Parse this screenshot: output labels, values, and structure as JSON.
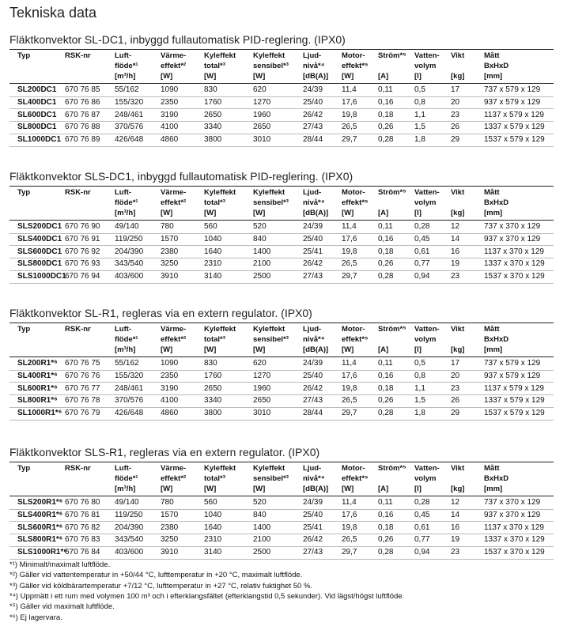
{
  "title": "Tekniska data",
  "sections": [
    {
      "heading": "Fläktkonvektor SL-DC1, inbyggd fullautomatisk PID-reglering. (IPX0)",
      "table": {
        "header": [
          [
            "Typ"
          ],
          [
            "RSK-nr"
          ],
          [
            "Luft-",
            "flöde*¹",
            "[m³/h]"
          ],
          [
            "Värme-",
            "effekt*²",
            "[W]"
          ],
          [
            "Kyleffekt",
            "total*³",
            "[W]"
          ],
          [
            "Kyleffekt",
            "sensibel*³",
            "[W]"
          ],
          [
            "Ljud-",
            "nivå*⁴",
            "[dB(A)]"
          ],
          [
            "Motor-",
            "effekt*⁵",
            "[W]"
          ],
          [
            "Ström*⁵",
            "[A]"
          ],
          [
            "Vatten-",
            "volym",
            "[l]"
          ],
          [
            "Vikt",
            "[kg]"
          ],
          [
            "Mått",
            "BxHxD",
            "[mm]"
          ]
        ],
        "rows": [
          [
            "SL200DC1",
            "670 76 85",
            "55/162",
            "1090",
            "830",
            "620",
            "24/39",
            "11,4",
            "0,11",
            "0,5",
            "17",
            "737 x 579 x 129"
          ],
          [
            "SL400DC1",
            "670 76 86",
            "155/320",
            "2350",
            "1760",
            "1270",
            "25/40",
            "17,6",
            "0,16",
            "0,8",
            "20",
            "937 x 579 x 129"
          ],
          [
            "SL600DC1",
            "670 76 87",
            "248/461",
            "3190",
            "2650",
            "1960",
            "26/42",
            "19,8",
            "0,18",
            "1,1",
            "23",
            "1137 x 579 x 129"
          ],
          [
            "SL800DC1",
            "670 76 88",
            "370/576",
            "4100",
            "3340",
            "2650",
            "27/43",
            "26,5",
            "0,26",
            "1,5",
            "26",
            "1337 x 579 x 129"
          ],
          [
            "SL1000DC1",
            "670 76 89",
            "426/648",
            "4860",
            "3800",
            "3010",
            "28/44",
            "29,7",
            "0,28",
            "1,8",
            "29",
            "1537 x 579 x 129"
          ]
        ]
      }
    },
    {
      "heading": "Fläktkonvektor SLS-DC1, inbyggd fullautomatisk PID-reglering. (IPX0)",
      "table": {
        "header": [
          [
            "Typ"
          ],
          [
            "RSK-nr"
          ],
          [
            "Luft-",
            "flöde*¹",
            "[m³/h]"
          ],
          [
            "Värme-",
            "effekt*²",
            "[W]"
          ],
          [
            "Kyleffekt",
            "total*³",
            "[W]"
          ],
          [
            "Kyleffekt",
            "sensibel*³",
            "[W]"
          ],
          [
            "Ljud-",
            "nivå*⁴",
            "[dB(A)]"
          ],
          [
            "Motor-",
            "effekt*⁵",
            "[W]"
          ],
          [
            "Ström*⁵",
            "[A]"
          ],
          [
            "Vatten-",
            "volym",
            "[l]"
          ],
          [
            "Vikt",
            "[kg]"
          ],
          [
            "Mått",
            "BxHxD",
            "[mm]"
          ]
        ],
        "rows": [
          [
            "SLS200DC1",
            "670 76 90",
            "49/140",
            "780",
            "560",
            "520",
            "24/39",
            "11,4",
            "0,11",
            "0,28",
            "12",
            "737 x 370 x 129"
          ],
          [
            "SLS400DC1",
            "670 76 91",
            "119/250",
            "1570",
            "1040",
            "840",
            "25/40",
            "17,6",
            "0,16",
            "0,45",
            "14",
            "937 x 370 x 129"
          ],
          [
            "SLS600DC1",
            "670 76 92",
            "204/390",
            "2380",
            "1640",
            "1400",
            "25/41",
            "19,8",
            "0,18",
            "0,61",
            "16",
            "1137 x 370 x 129"
          ],
          [
            "SLS800DC1",
            "670 76 93",
            "343/540",
            "3250",
            "2310",
            "2100",
            "26/42",
            "26,5",
            "0,26",
            "0,77",
            "19",
            "1337 x 370 x 129"
          ],
          [
            "SLS1000DC1",
            "670 76 94",
            "403/600",
            "3910",
            "3140",
            "2500",
            "27/43",
            "29,7",
            "0,28",
            "0,94",
            "23",
            "1537 x 370 x 129"
          ]
        ]
      }
    },
    {
      "heading": "Fläktkonvektor SL-R1, regleras via en extern regulator. (IPX0)",
      "table": {
        "header": [
          [
            "Typ"
          ],
          [
            "RSK-nr"
          ],
          [
            "Luft-",
            "flöde*¹",
            "[m³/h]"
          ],
          [
            "Värme-",
            "effekt*²",
            "[W]"
          ],
          [
            "Kyleffekt",
            "total*³",
            "[W]"
          ],
          [
            "Kyleffekt",
            "sensibel*³",
            "[W]"
          ],
          [
            "Ljud-",
            "nivå*⁴",
            "[dB(A)]"
          ],
          [
            "Motor-",
            "effekt*⁵",
            "[W]"
          ],
          [
            "Ström*⁵",
            "[A]"
          ],
          [
            "Vatten-",
            "volym",
            "[l]"
          ],
          [
            "Vikt",
            "[kg]"
          ],
          [
            "Mått",
            "BxHxD",
            "[mm]"
          ]
        ],
        "rows": [
          [
            "SL200R1*⁶",
            "670 76 75",
            "55/162",
            "1090",
            "830",
            "620",
            "24/39",
            "11,4",
            "0,11",
            "0,5",
            "17",
            "737 x 579 x 129"
          ],
          [
            "SL400R1*⁶",
            "670 76 76",
            "155/320",
            "2350",
            "1760",
            "1270",
            "25/40",
            "17,6",
            "0,16",
            "0,8",
            "20",
            "937 x 579 x 129"
          ],
          [
            "SL600R1*⁶",
            "670 76 77",
            "248/461",
            "3190",
            "2650",
            "1960",
            "26/42",
            "19,8",
            "0,18",
            "1,1",
            "23",
            "1137 x 579 x 129"
          ],
          [
            "SL800R1*⁶",
            "670 76 78",
            "370/576",
            "4100",
            "3340",
            "2650",
            "27/43",
            "26,5",
            "0,26",
            "1,5",
            "26",
            "1337 x 579 x 129"
          ],
          [
            "SL1000R1*⁶",
            "670 76 79",
            "426/648",
            "4860",
            "3800",
            "3010",
            "28/44",
            "29,7",
            "0,28",
            "1,8",
            "29",
            "1537 x 579 x 129"
          ]
        ]
      }
    },
    {
      "heading": "Fläktkonvektor SLS-R1, regleras via en extern regulator. (IPX0)",
      "table": {
        "header": [
          [
            "Typ"
          ],
          [
            "RSK-nr"
          ],
          [
            "Luft-",
            "flöde*¹",
            "[m³/h]"
          ],
          [
            "Värme-",
            "effekt*²",
            "[W]"
          ],
          [
            "Kyleffekt",
            "total*³",
            "[W]"
          ],
          [
            "Kyleffekt",
            "sensibel*³",
            "[W]"
          ],
          [
            "Ljud-",
            "nivå*⁴",
            "[dB(A)]"
          ],
          [
            "Motor-",
            "effekt*⁵",
            "[W]"
          ],
          [
            "Ström*⁵",
            "[A]"
          ],
          [
            "Vatten-",
            "volym",
            "[l]"
          ],
          [
            "Vikt",
            "[kg]"
          ],
          [
            "Mått",
            "BxHxD",
            "[mm]"
          ]
        ],
        "rows": [
          [
            "SLS200R1*⁶",
            "670 76 80",
            "49/140",
            "780",
            "560",
            "520",
            "24/39",
            "11,4",
            "0,11",
            "0,28",
            "12",
            "737 x 370 x 129"
          ],
          [
            "SLS400R1*⁶",
            "670 76 81",
            "119/250",
            "1570",
            "1040",
            "840",
            "25/40",
            "17,6",
            "0,16",
            "0,45",
            "14",
            "937 x 370 x 129"
          ],
          [
            "SLS600R1*⁶",
            "670 76 82",
            "204/390",
            "2380",
            "1640",
            "1400",
            "25/41",
            "19,8",
            "0,18",
            "0,61",
            "16",
            "1137 x 370 x 129"
          ],
          [
            "SLS800R1*⁶",
            "670 76 83",
            "343/540",
            "3250",
            "2310",
            "2100",
            "26/42",
            "26,5",
            "0,26",
            "0,77",
            "19",
            "1337 x 370 x 129"
          ],
          [
            "SLS1000R1*⁶",
            "670 76 84",
            "403/600",
            "3910",
            "3140",
            "2500",
            "27/43",
            "29,7",
            "0,28",
            "0,94",
            "23",
            "1537 x 370 x 129"
          ]
        ]
      }
    }
  ],
  "footnotes": [
    "*¹) Minimalt/maximalt luftflöde.",
    "*²) Gäller vid vattentemperatur in +50/44 °C, lufttemperatur in +20 °C, maximalt luftflöde.",
    "*³) Gäller vid köldbärartemperatur +7/12 °C, lufttemperatur in +27 °C, relativ fuktighet 50 %.",
    "*⁴) Uppmätt i ett rum med volymen 100 m³ och i efterklangsfältet (efterklangstid 0,5 sekunder). Vid lägst/högst luftflöde.",
    "*⁵) Gäller vid maximalt luftflöde.",
    "*⁶) Ej lagervara."
  ]
}
